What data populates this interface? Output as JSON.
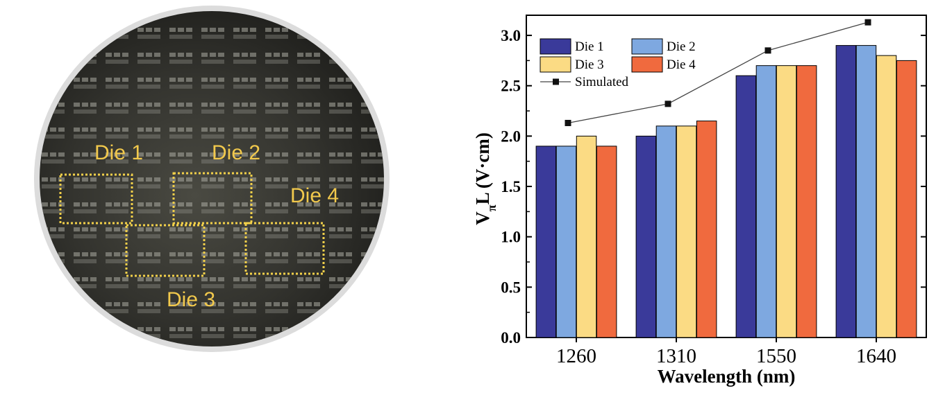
{
  "wafer_photo": {
    "labels": [
      "Die 1",
      "Die 2",
      "Die 4",
      "Die 3"
    ],
    "label_color": "#f2c94c",
    "box_color": "#f2d04a"
  },
  "chart_data": {
    "type": "bar",
    "title": "",
    "xlabel": "Wavelength (nm)",
    "ylabel_main": "V",
    "ylabel_sub": "π",
    "ylabel_rest": "L (V·cm)",
    "categories": [
      "1260",
      "1310",
      "1550",
      "1640"
    ],
    "series": [
      {
        "name": "Die 1",
        "color": "#3a3a9a",
        "values": [
          1.9,
          2.0,
          2.6,
          2.9
        ]
      },
      {
        "name": "Die 2",
        "color": "#7ea8e0",
        "values": [
          1.9,
          2.1,
          2.7,
          2.9
        ]
      },
      {
        "name": "Die 3",
        "color": "#fbdb84",
        "values": [
          2.0,
          2.1,
          2.7,
          2.8
        ]
      },
      {
        "name": "Die 4",
        "color": "#f06a3e",
        "values": [
          1.9,
          2.15,
          2.7,
          2.75
        ]
      }
    ],
    "line_series": {
      "name": "Simulated",
      "color": "#111111",
      "values": [
        2.13,
        2.32,
        2.85,
        3.13
      ]
    },
    "ylim": [
      0,
      3.2
    ],
    "yticks": [
      "0.0",
      "0.5",
      "1.0",
      "1.5",
      "2.0",
      "2.5",
      "3.0"
    ],
    "ytick_values": [
      0,
      0.5,
      1.0,
      1.5,
      2.0,
      2.5,
      3.0
    ],
    "legend_position": "top-left",
    "grid": false
  }
}
